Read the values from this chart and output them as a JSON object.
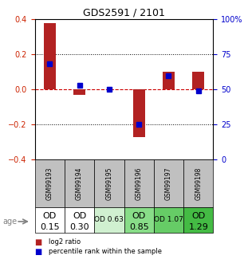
{
  "title": "GDS2591 / 2101",
  "samples": [
    "GSM99193",
    "GSM99194",
    "GSM99195",
    "GSM99196",
    "GSM99197",
    "GSM99198"
  ],
  "log2_ratio": [
    0.38,
    -0.03,
    0.0,
    -0.27,
    0.1,
    0.1
  ],
  "percentile_rank": [
    68,
    53,
    50,
    25,
    60,
    49
  ],
  "od_labels_line1": [
    "OD",
    "OD",
    "OD 0.63",
    "OD",
    "OD 1.07",
    "OD"
  ],
  "od_labels_line2": [
    "0.15",
    "0.30",
    "",
    "0.85",
    "",
    "1.29"
  ],
  "od_colors": [
    "#ffffff",
    "#ffffff",
    "#d0f0d0",
    "#88dd88",
    "#66cc66",
    "#44bb44"
  ],
  "od_fontsize_big": 8,
  "od_fontsize_small": 6.5,
  "ylim_left": [
    -0.4,
    0.4
  ],
  "ylim_right": [
    0,
    100
  ],
  "yticks_left": [
    -0.4,
    -0.2,
    0.0,
    0.2,
    0.4
  ],
  "yticks_right": [
    0,
    25,
    50,
    75,
    100
  ],
  "ytick_labels_right": [
    "0",
    "25",
    "50",
    "75",
    "100%"
  ],
  "bar_color": "#b22222",
  "dot_color": "#0000cc",
  "background_color": "#ffffff",
  "zero_line_color": "#cc0000",
  "table_bg": "#c0c0c0",
  "age_label": "age"
}
